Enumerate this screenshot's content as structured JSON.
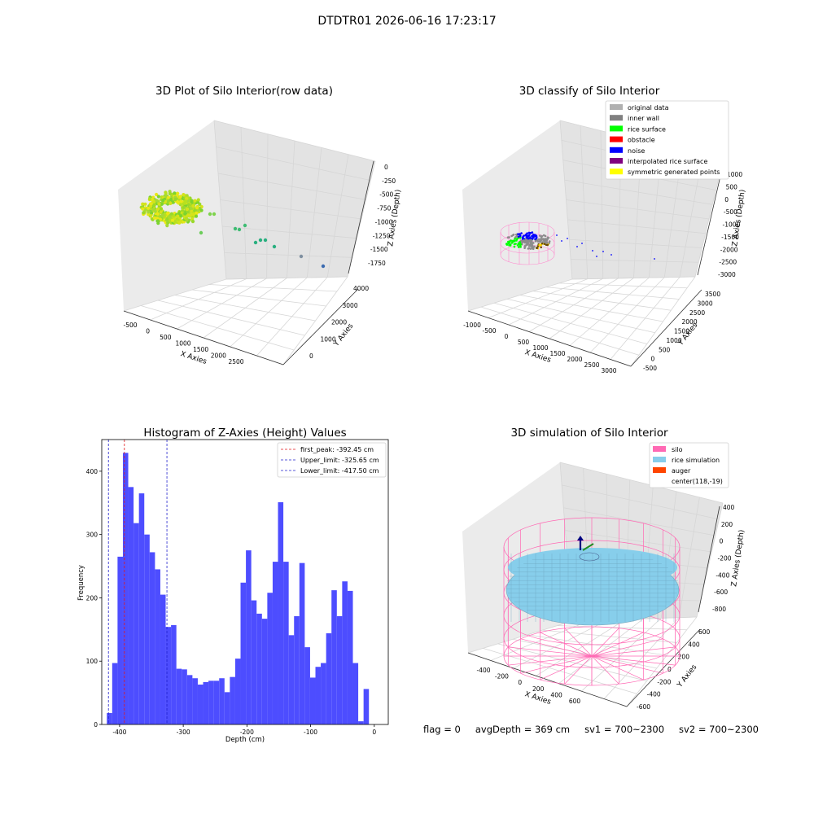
{
  "figure": {
    "suptitle": "DTDTR01 2026-06-16 17:23:17",
    "footer": {
      "flag": "flag = 0",
      "avg": "avgDepth = 369 cm",
      "sv1": "sv1 = 700~2300",
      "sv2": "sv2 = 700~2300"
    }
  },
  "colors": {
    "hist_bar": "#4d4dff",
    "first_peak": "#e31a1c",
    "limit": "#2222cc",
    "silo": "#ff69b4",
    "rice": "#87ceeb",
    "auger": "#ff4500",
    "pane_top": "#f2f2f2",
    "pane_side": "#e6e6e6",
    "grid": "#d9d9d9"
  },
  "chart_data": [
    {
      "id": "raw",
      "type": "scatter3d",
      "title": "3D Plot of Silo Interior(row data)",
      "xlabel": "X Axies",
      "ylabel": "Y Axies",
      "zlabel": "Z Axies (Depth)",
      "xticks": [
        "-500",
        "0",
        "500",
        "1000",
        "1500",
        "2000",
        "2500"
      ],
      "yticks": [
        "0",
        "1000",
        "2000",
        "3000",
        "4000"
      ],
      "zticks": [
        "0",
        "-250",
        "-500",
        "-750",
        "-1000",
        "-1250",
        "-1500",
        "-1750"
      ],
      "grid": true
    },
    {
      "id": "classify",
      "type": "scatter3d",
      "title": "3D classify of Silo Interior",
      "xlabel": "X Axies",
      "ylabel": "Y Axies",
      "zlabel": "Z Axies (Depth)",
      "xticks": [
        "-1000",
        "-500",
        "0",
        "500",
        "1000",
        "1500",
        "2000",
        "2500",
        "3000"
      ],
      "yticks": [
        "-500",
        "0",
        "500",
        "1000",
        "1500",
        "2000",
        "2500",
        "3000",
        "3500"
      ],
      "zticks": [
        "1000",
        "500",
        "0",
        "-500",
        "-1000",
        "-1500",
        "-2000",
        "-2500",
        "-3000"
      ],
      "legend": [
        {
          "label": "original data",
          "color": "#b0b0b0"
        },
        {
          "label": "inner wall",
          "color": "#808080"
        },
        {
          "label": "rice surface",
          "color": "#00ff00"
        },
        {
          "label": "obstacle",
          "color": "#ff0000"
        },
        {
          "label": "noise",
          "color": "#0000ff"
        },
        {
          "label": "interpolated rice surface",
          "color": "#800080"
        },
        {
          "label": "symmetric generated points",
          "color": "#ffff00"
        }
      ],
      "legend_loc": "upper right",
      "grid": true
    },
    {
      "id": "histogram",
      "type": "bar",
      "title": "Histogram of Z-Axies (Height) Values",
      "xlabel": "Depth (cm)",
      "ylabel": "Frequency",
      "xlim": [
        -428,
        22
      ],
      "ylim": [
        0,
        450
      ],
      "xticks": [
        -400,
        -300,
        -200,
        -100,
        0
      ],
      "yticks": [
        0,
        100,
        200,
        300,
        400
      ],
      "bin_start": -420,
      "bin_width": 8.4,
      "values": [
        18,
        97,
        265,
        429,
        375,
        318,
        365,
        300,
        272,
        245,
        205,
        154,
        157,
        88,
        87,
        78,
        73,
        63,
        67,
        69,
        69,
        73,
        51,
        75,
        104,
        224,
        275,
        196,
        175,
        167,
        208,
        257,
        351,
        257,
        141,
        171,
        255,
        122,
        74,
        91,
        97,
        144,
        212,
        171,
        226,
        211,
        97,
        5,
        56
      ],
      "lines": [
        {
          "label": "first_peak: -392.45 cm",
          "x": -392.45,
          "role": "first_peak"
        },
        {
          "label": "Upper_limit: -325.65 cm",
          "x": -325.65,
          "role": "limit"
        },
        {
          "label": "Lower_limit: -417.50 cm",
          "x": -417.5,
          "role": "limit"
        }
      ],
      "legend_loc": "upper right"
    },
    {
      "id": "simulation",
      "type": "surface3d",
      "title": "3D simulation of Silo Interior",
      "xlabel": "X Axies",
      "ylabel": "Y Axies",
      "zlabel": "Z Axies (Depth)",
      "xticks": [
        "-400",
        "-200",
        "0",
        "200",
        "400",
        "600"
      ],
      "yticks": [
        "-600",
        "-400",
        "-200",
        "0",
        "200",
        "400",
        "600"
      ],
      "zticks": [
        "400",
        "200",
        "0",
        "-200",
        "-400",
        "-600",
        "-800"
      ],
      "legend": [
        {
          "label": "silo",
          "color": "#ff69b4"
        },
        {
          "label": "rice simulation",
          "color": "#87ceeb"
        },
        {
          "label": "auger",
          "color": "#ff4500"
        },
        {
          "label": "center(118,-19)",
          "color": ""
        }
      ],
      "legend_loc": "upper right",
      "grid": true
    }
  ]
}
